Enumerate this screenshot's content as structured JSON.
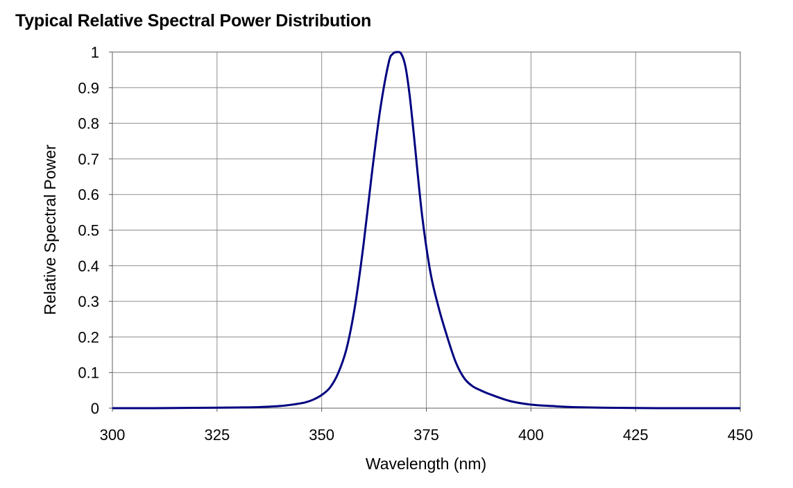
{
  "chart_data": {
    "type": "line",
    "title": "Typical Relative Spectral Power Distribution",
    "xlabel": "Wavelength (nm)",
    "ylabel": "Relative Spectral Power",
    "xlim": [
      300,
      450
    ],
    "ylim": [
      0,
      1
    ],
    "xticks": [
      300,
      325,
      350,
      375,
      400,
      425,
      450
    ],
    "yticks": [
      0,
      0.1,
      0.2,
      0.3,
      0.4,
      0.5,
      0.6,
      0.7,
      0.8,
      0.9,
      1
    ],
    "ytick_labels": [
      "0",
      "0.1",
      "0.2",
      "0.3",
      "0.4",
      "0.5",
      "0.6",
      "0.7",
      "0.8",
      "0.9",
      "1"
    ],
    "grid": true,
    "series": [
      {
        "color": "#000080",
        "x": [
          300,
          310,
          320,
          330,
          335,
          340,
          343,
          346,
          348,
          350,
          352,
          354,
          356,
          358,
          360,
          362,
          364,
          366,
          367,
          368,
          369,
          370,
          371,
          372,
          374,
          376,
          378,
          380,
          382,
          384,
          386,
          388,
          390,
          395,
          400,
          405,
          410,
          420,
          430,
          440,
          450
        ],
        "y": [
          0.0,
          0.0,
          0.001,
          0.002,
          0.003,
          0.006,
          0.01,
          0.016,
          0.024,
          0.037,
          0.058,
          0.1,
          0.17,
          0.29,
          0.46,
          0.66,
          0.84,
          0.97,
          0.995,
          1.0,
          0.995,
          0.96,
          0.88,
          0.77,
          0.54,
          0.38,
          0.28,
          0.2,
          0.13,
          0.085,
          0.062,
          0.05,
          0.04,
          0.02,
          0.01,
          0.006,
          0.003,
          0.001,
          0.0,
          0.0,
          0.0
        ]
      }
    ]
  }
}
